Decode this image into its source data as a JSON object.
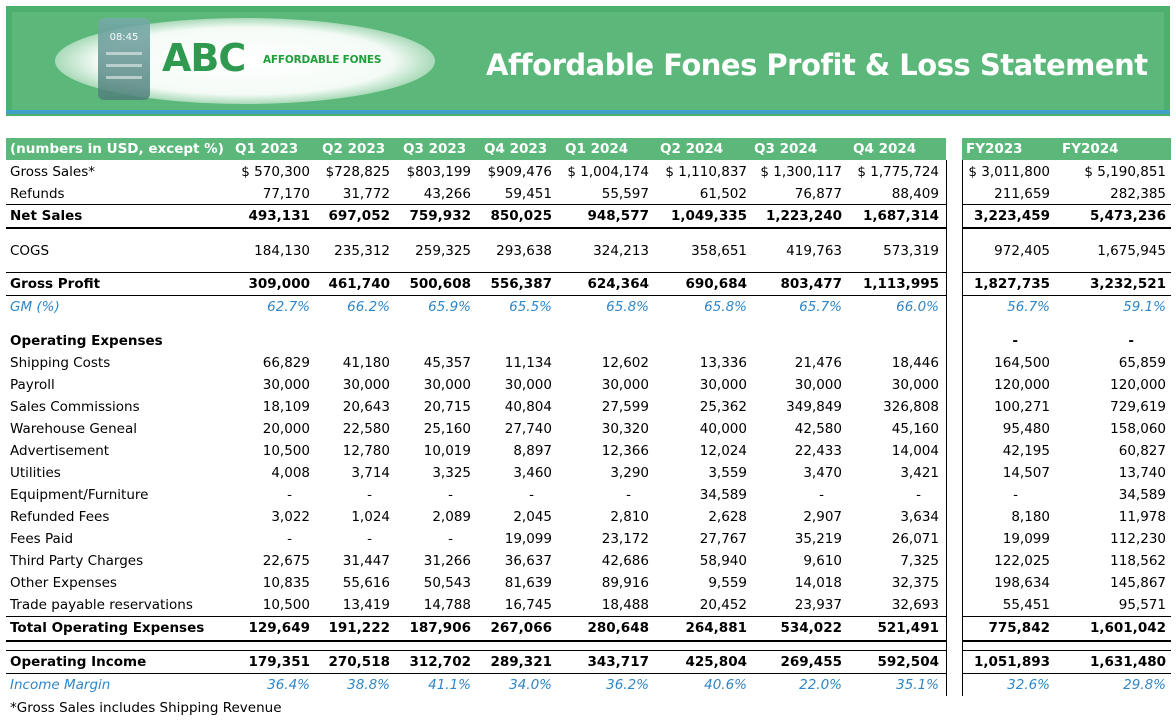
{
  "banner": {
    "logo_text": "ABC",
    "logo_subtext": "AFFORDABLE FONES",
    "phone_time": "08:45",
    "title": "Affordable Fones Profit & Loss Statement"
  },
  "table": {
    "header_label": "(numbers in USD, except %)",
    "quarters": [
      "Q1 2023",
      "Q2 2023",
      "Q3 2023",
      "Q4 2023",
      "Q1 2024",
      "Q2 2024",
      "Q3 2024",
      "Q4 2024"
    ],
    "years": [
      "FY2023",
      "FY2024"
    ],
    "rows": [
      {
        "label": "Gross Sales*",
        "q": [
          "$ 570,300",
          "$728,825",
          "$803,199",
          "$909,476",
          "$ 1,004,174",
          "$ 1,110,837",
          "$ 1,300,117",
          "$ 1,775,724"
        ],
        "fy": [
          "$ 3,011,800",
          "$    5,190,851"
        ]
      },
      {
        "label": "Refunds",
        "q": [
          "77,170",
          "31,772",
          "43,266",
          "59,451",
          "55,597",
          "61,502",
          "76,877",
          "88,409"
        ],
        "fy": [
          "211,659",
          "282,385"
        ]
      },
      {
        "label": "Net Sales",
        "q": [
          "493,131",
          "697,052",
          "759,932",
          "850,025",
          "948,577",
          "1,049,335",
          "1,223,240",
          "1,687,314"
        ],
        "fy": [
          "3,223,459",
          "5,473,236"
        ]
      },
      {
        "label": "COGS",
        "q": [
          "184,130",
          "235,312",
          "259,325",
          "293,638",
          "324,213",
          "358,651",
          "419,763",
          "573,319"
        ],
        "fy": [
          "972,405",
          "1,675,945"
        ]
      },
      {
        "label": "Gross Profit",
        "q": [
          "309,000",
          "461,740",
          "500,608",
          "556,387",
          "624,364",
          "690,684",
          "803,477",
          "1,113,995"
        ],
        "fy": [
          "1,827,735",
          "3,232,521"
        ]
      },
      {
        "label": "GM (%)",
        "q": [
          "62.7%",
          "66.2%",
          "65.9%",
          "65.5%",
          "65.8%",
          "65.8%",
          "65.7%",
          "66.0%"
        ],
        "fy": [
          "56.7%",
          "59.1%"
        ]
      },
      {
        "label": "Operating Expenses",
        "q": [
          "",
          "",
          "",
          "",
          "",
          "",
          "",
          ""
        ],
        "fy": [
          "-",
          "-"
        ]
      },
      {
        "label": "Shipping Costs",
        "q": [
          "66,829",
          "41,180",
          "45,357",
          "11,134",
          "12,602",
          "13,336",
          "21,476",
          "18,446"
        ],
        "fy": [
          "164,500",
          "65,859"
        ]
      },
      {
        "label": "Payroll",
        "q": [
          "30,000",
          "30,000",
          "30,000",
          "30,000",
          "30,000",
          "30,000",
          "30,000",
          "30,000"
        ],
        "fy": [
          "120,000",
          "120,000"
        ]
      },
      {
        "label": "Sales Commissions",
        "q": [
          "18,109",
          "20,643",
          "20,715",
          "40,804",
          "27,599",
          "25,362",
          "349,849",
          "326,808"
        ],
        "fy": [
          "100,271",
          "729,619"
        ]
      },
      {
        "label": "Warehouse Geneal",
        "q": [
          "20,000",
          "22,580",
          "25,160",
          "27,740",
          "30,320",
          "40,000",
          "42,580",
          "45,160"
        ],
        "fy": [
          "95,480",
          "158,060"
        ]
      },
      {
        "label": "Advertisement",
        "q": [
          "10,500",
          "12,780",
          "10,019",
          "8,897",
          "12,366",
          "12,024",
          "22,433",
          "14,004"
        ],
        "fy": [
          "42,195",
          "60,827"
        ]
      },
      {
        "label": "Utilities",
        "q": [
          "4,008",
          "3,714",
          "3,325",
          "3,460",
          "3,290",
          "3,559",
          "3,470",
          "3,421"
        ],
        "fy": [
          "14,507",
          "13,740"
        ]
      },
      {
        "label": "Equipment/Furniture",
        "q": [
          "-",
          "-",
          "-",
          "-",
          "-",
          "34,589",
          "-",
          "-"
        ],
        "fy": [
          "-",
          "34,589"
        ]
      },
      {
        "label": "Refunded Fees",
        "q": [
          "3,022",
          "1,024",
          "2,089",
          "2,045",
          "2,810",
          "2,628",
          "2,907",
          "3,634"
        ],
        "fy": [
          "8,180",
          "11,978"
        ]
      },
      {
        "label": "Fees Paid",
        "q": [
          "-",
          "-",
          "-",
          "19,099",
          "23,172",
          "27,767",
          "35,219",
          "26,071"
        ],
        "fy": [
          "19,099",
          "112,230"
        ]
      },
      {
        "label": "Third Party Charges",
        "q": [
          "22,675",
          "31,447",
          "31,266",
          "36,637",
          "42,686",
          "58,940",
          "9,610",
          "7,325"
        ],
        "fy": [
          "122,025",
          "118,562"
        ]
      },
      {
        "label": "Other Expenses",
        "q": [
          "10,835",
          "55,616",
          "50,543",
          "81,639",
          "89,916",
          "9,559",
          "14,018",
          "32,375"
        ],
        "fy": [
          "198,634",
          "145,867"
        ]
      },
      {
        "label": "Trade payable reservations",
        "q": [
          "10,500",
          "13,419",
          "14,788",
          "16,745",
          "18,488",
          "20,452",
          "23,937",
          "32,693"
        ],
        "fy": [
          "55,451",
          "95,571"
        ]
      },
      {
        "label": "Total Operating Expenses",
        "q": [
          "129,649",
          "191,222",
          "187,906",
          "267,066",
          "280,648",
          "264,881",
          "534,022",
          "521,491"
        ],
        "fy": [
          "775,842",
          "1,601,042"
        ]
      },
      {
        "label": "Operating Income",
        "q": [
          "179,351",
          "270,518",
          "312,702",
          "289,321",
          "343,717",
          "425,804",
          "269,455",
          "592,504"
        ],
        "fy": [
          "1,051,893",
          "1,631,480"
        ]
      },
      {
        "label": "Income Margin",
        "q": [
          "36.4%",
          "38.8%",
          "41.1%",
          "34.0%",
          "36.2%",
          "40.6%",
          "22.0%",
          "35.1%"
        ],
        "fy": [
          "32.6%",
          "29.8%"
        ]
      }
    ],
    "footnote": "*Gross Sales includes Shipping Revenue"
  },
  "colors": {
    "header_green": "#5cb87a",
    "banner_border": "#3fa0c8",
    "percent_blue": "#2f86c8"
  }
}
